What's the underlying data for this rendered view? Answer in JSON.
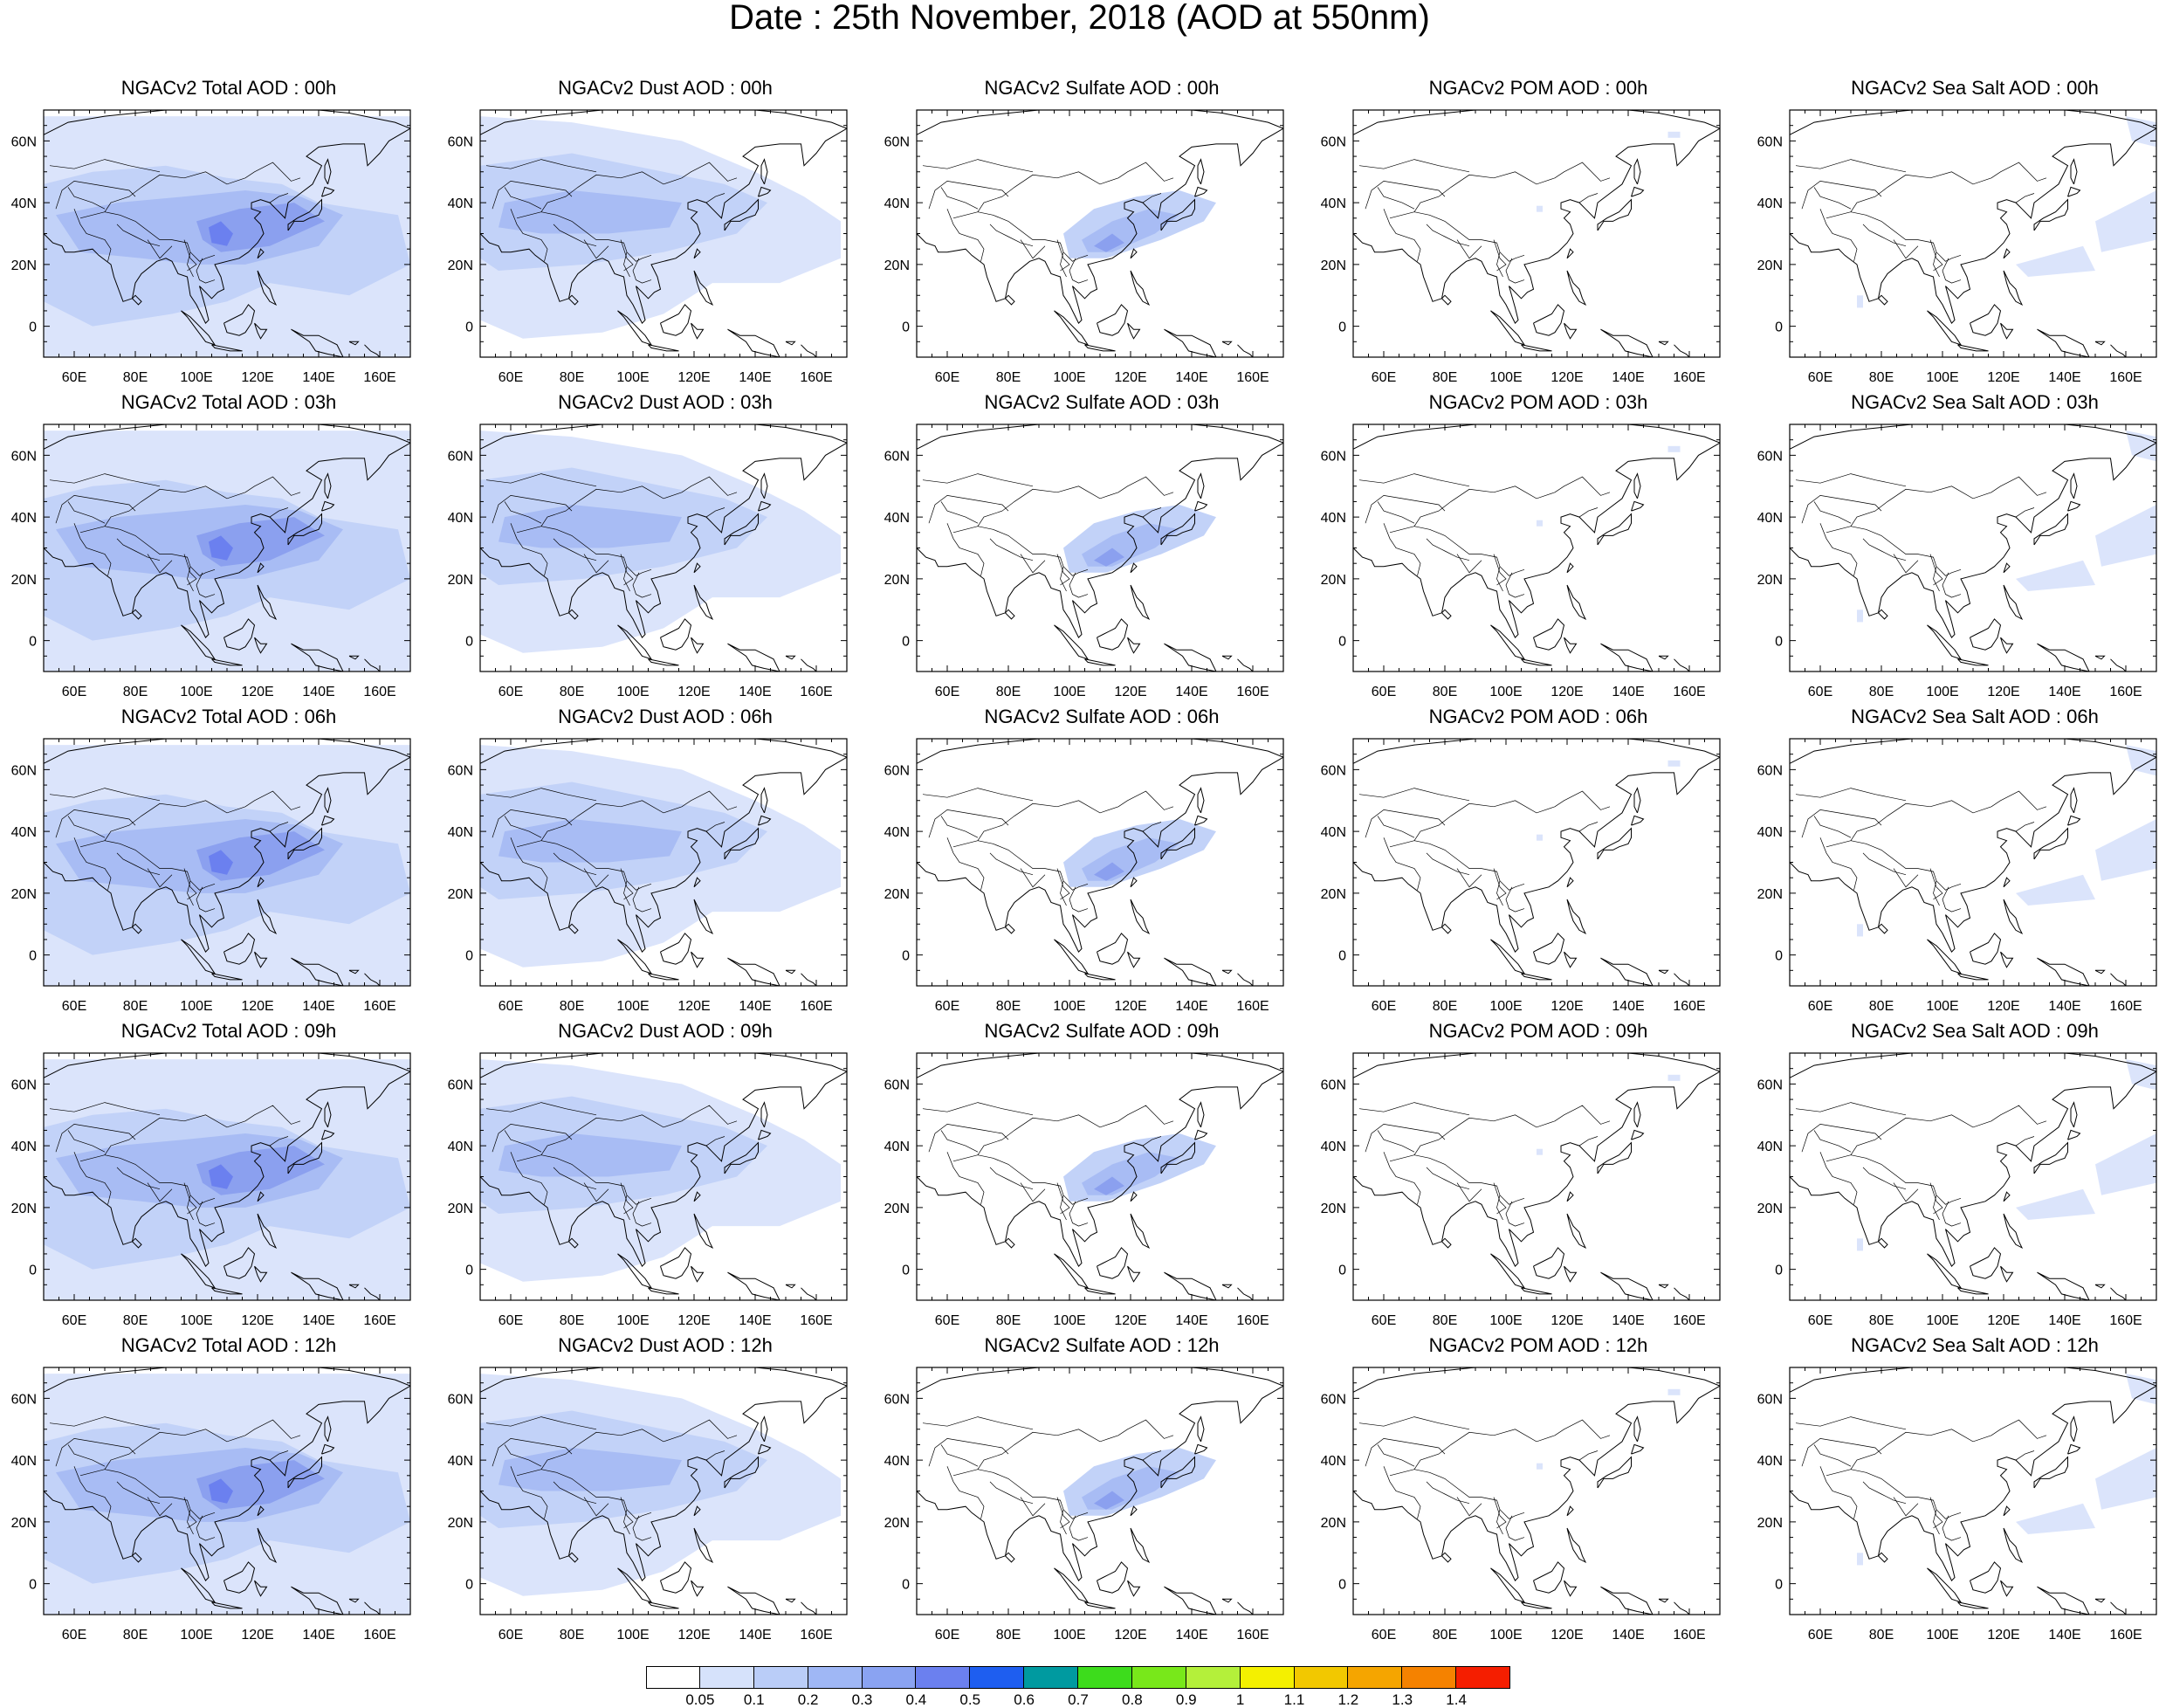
{
  "title": "Date : 25th November, 2018 (AOD at 550nm)",
  "map": {
    "lon_ticks": [
      "60E",
      "80E",
      "100E",
      "120E",
      "140E",
      "160E"
    ],
    "lat_ticks": [
      "60N",
      "40N",
      "20N",
      "0"
    ],
    "lon_values": [
      60,
      80,
      100,
      120,
      140,
      160
    ],
    "lat_values": [
      60,
      40,
      20,
      0
    ],
    "extent": {
      "lon": [
        50,
        170
      ],
      "lat": [
        -10,
        70
      ]
    }
  },
  "panels": [
    [
      {
        "title": "NGACv2 Total AOD : 00h",
        "field": "total"
      },
      {
        "title": "NGACv2 Dust AOD : 00h",
        "field": "dust"
      },
      {
        "title": "NGACv2 Sulfate AOD : 00h",
        "field": "sulfate"
      },
      {
        "title": "NGACv2 POM AOD : 00h",
        "field": "pom"
      },
      {
        "title": "NGACv2 Sea Salt AOD : 00h",
        "field": "seasalt"
      }
    ],
    [
      {
        "title": "NGACv2 Total AOD : 03h",
        "field": "total"
      },
      {
        "title": "NGACv2 Dust AOD : 03h",
        "field": "dust"
      },
      {
        "title": "NGACv2 Sulfate AOD : 03h",
        "field": "sulfate"
      },
      {
        "title": "NGACv2 POM AOD : 03h",
        "field": "pom"
      },
      {
        "title": "NGACv2 Sea Salt AOD : 03h",
        "field": "seasalt"
      }
    ],
    [
      {
        "title": "NGACv2 Total AOD : 06h",
        "field": "total"
      },
      {
        "title": "NGACv2 Dust AOD : 06h",
        "field": "dust"
      },
      {
        "title": "NGACv2 Sulfate AOD : 06h",
        "field": "sulfate"
      },
      {
        "title": "NGACv2 POM AOD : 06h",
        "field": "pom"
      },
      {
        "title": "NGACv2 Sea Salt AOD : 06h",
        "field": "seasalt"
      }
    ],
    [
      {
        "title": "NGACv2 Total AOD : 09h",
        "field": "total"
      },
      {
        "title": "NGACv2 Dust AOD : 09h",
        "field": "dust"
      },
      {
        "title": "NGACv2 Sulfate AOD : 09h",
        "field": "sulfate"
      },
      {
        "title": "NGACv2 POM AOD : 09h",
        "field": "pom"
      },
      {
        "title": "NGACv2 Sea Salt  AOD : 09h",
        "field": "seasalt"
      }
    ],
    [
      {
        "title": "NGACv2 Total AOD  : 12h",
        "field": "total"
      },
      {
        "title": "NGACv2 Dust AOD : 12h",
        "field": "dust"
      },
      {
        "title": "NGACv2 Sulfate AOD : 12h",
        "field": "sulfate"
      },
      {
        "title": "NGACv2 POM  AOD : 12h",
        "field": "pom"
      },
      {
        "title": "NGACv2 Sea Salt  AOD : 12h",
        "field": "seasalt"
      }
    ]
  ],
  "colorbar": {
    "labels": [
      "0.05",
      "0.1",
      "0.2",
      "0.3",
      "0.4",
      "0.5",
      "0.6",
      "0.7",
      "0.8",
      "0.9",
      "1",
      "1.1",
      "1.2",
      "1.3",
      "1.4"
    ],
    "colors": [
      "#ffffff",
      "#d6e2fb",
      "#bacdf8",
      "#9fb7f5",
      "#8aa3f2",
      "#6b80ef",
      "#1e5ef0",
      "#009aa0",
      "#3ddc1c",
      "#78e81a",
      "#b4f03a",
      "#f4f000",
      "#f2c800",
      "#f5a500",
      "#f58200",
      "#f51e00"
    ]
  },
  "colors": {
    "aod_very_light": "#dbe4fb",
    "aod_light": "#c2d2f8",
    "aod_medium": "#a8bcf4",
    "aod_dark": "#8ba0ef",
    "aod_peak": "#6b80ef",
    "coastline": "#000000"
  }
}
